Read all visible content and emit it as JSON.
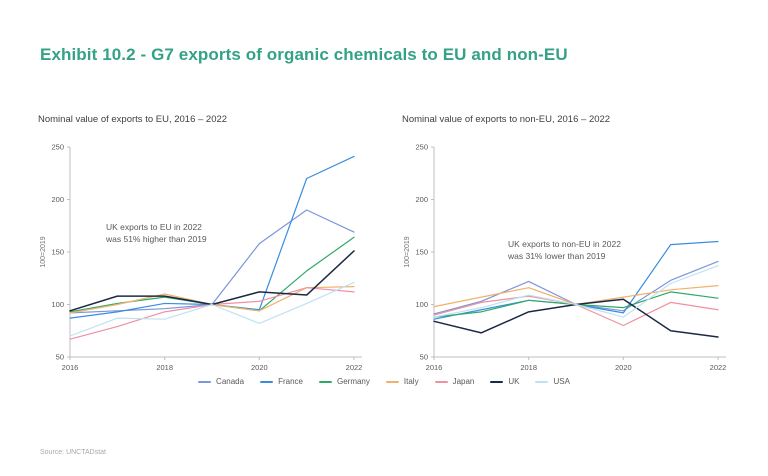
{
  "page": {
    "title": "Exhibit 10.2 - G7 exports of organic chemicals to EU and non-EU",
    "title_color": "#33a287",
    "source": "Source: UNCTADstat"
  },
  "chart_data": [
    {
      "type": "line",
      "title": "Nominal value of exports to EU, 2016 – 2022",
      "ylabel": "100=2019",
      "x": [
        2016,
        2017,
        2018,
        2019,
        2020,
        2021,
        2022
      ],
      "x_ticks": [
        2016,
        2018,
        2020,
        2022
      ],
      "y_ticks": [
        50,
        100,
        150,
        200,
        250
      ],
      "ylim": [
        50,
        250
      ],
      "grid": false,
      "annotation": [
        "UK exports to EU in 2022",
        "was 51% higher than 2019"
      ],
      "series": [
        {
          "name": "Canada",
          "color": "#7b96dc",
          "values": [
            92,
            94,
            96,
            100,
            158,
            190,
            169
          ]
        },
        {
          "name": "France",
          "color": "#3a8dde",
          "values": [
            87,
            93,
            101,
            100,
            95,
            220,
            241
          ]
        },
        {
          "name": "Germany",
          "color": "#2eaa67",
          "values": [
            93,
            101,
            107,
            100,
            94,
            132,
            164
          ]
        },
        {
          "name": "Italy",
          "color": "#f2b06c",
          "values": [
            92,
            100,
            110,
            100,
            94,
            116,
            117
          ]
        },
        {
          "name": "Japan",
          "color": "#f090a0",
          "values": [
            67,
            79,
            93,
            100,
            103,
            116,
            112
          ]
        },
        {
          "name": "UK",
          "color": "#1b2a44",
          "values": [
            94,
            108,
            108,
            100,
            112,
            109,
            151
          ]
        },
        {
          "name": "USA",
          "color": "#bfe2f2",
          "values": [
            70,
            87,
            86,
            100,
            82,
            101,
            121
          ]
        }
      ]
    },
    {
      "type": "line",
      "title": "Nominal value of exports to non-EU, 2016 – 2022",
      "ylabel": "100=2019",
      "x": [
        2016,
        2017,
        2018,
        2019,
        2020,
        2021,
        2022
      ],
      "x_ticks": [
        2016,
        2018,
        2020,
        2022
      ],
      "y_ticks": [
        50,
        100,
        150,
        200,
        250
      ],
      "ylim": [
        50,
        250
      ],
      "grid": false,
      "annotation": [
        "UK exports to non-EU in 2022",
        "was 31% lower than 2019"
      ],
      "series": [
        {
          "name": "Canada",
          "color": "#7b96dc",
          "values": [
            91,
            103,
            122,
            100,
            94,
            123,
            141
          ]
        },
        {
          "name": "France",
          "color": "#3a8dde",
          "values": [
            86,
            95,
            104,
            100,
            92,
            157,
            160
          ]
        },
        {
          "name": "Germany",
          "color": "#2eaa67",
          "values": [
            88,
            93,
            104,
            100,
            97,
            112,
            106
          ]
        },
        {
          "name": "Italy",
          "color": "#f2b06c",
          "values": [
            98,
            107,
            116,
            100,
            107,
            114,
            118
          ]
        },
        {
          "name": "Japan",
          "color": "#f090a0",
          "values": [
            90,
            102,
            108,
            100,
            80,
            102,
            95
          ]
        },
        {
          "name": "UK",
          "color": "#1b2a44",
          "values": [
            84,
            73,
            93,
            100,
            105,
            75,
            69
          ]
        },
        {
          "name": "USA",
          "color": "#bfe2f2",
          "values": [
            88,
            97,
            109,
            100,
            88,
            120,
            137
          ]
        }
      ]
    }
  ]
}
